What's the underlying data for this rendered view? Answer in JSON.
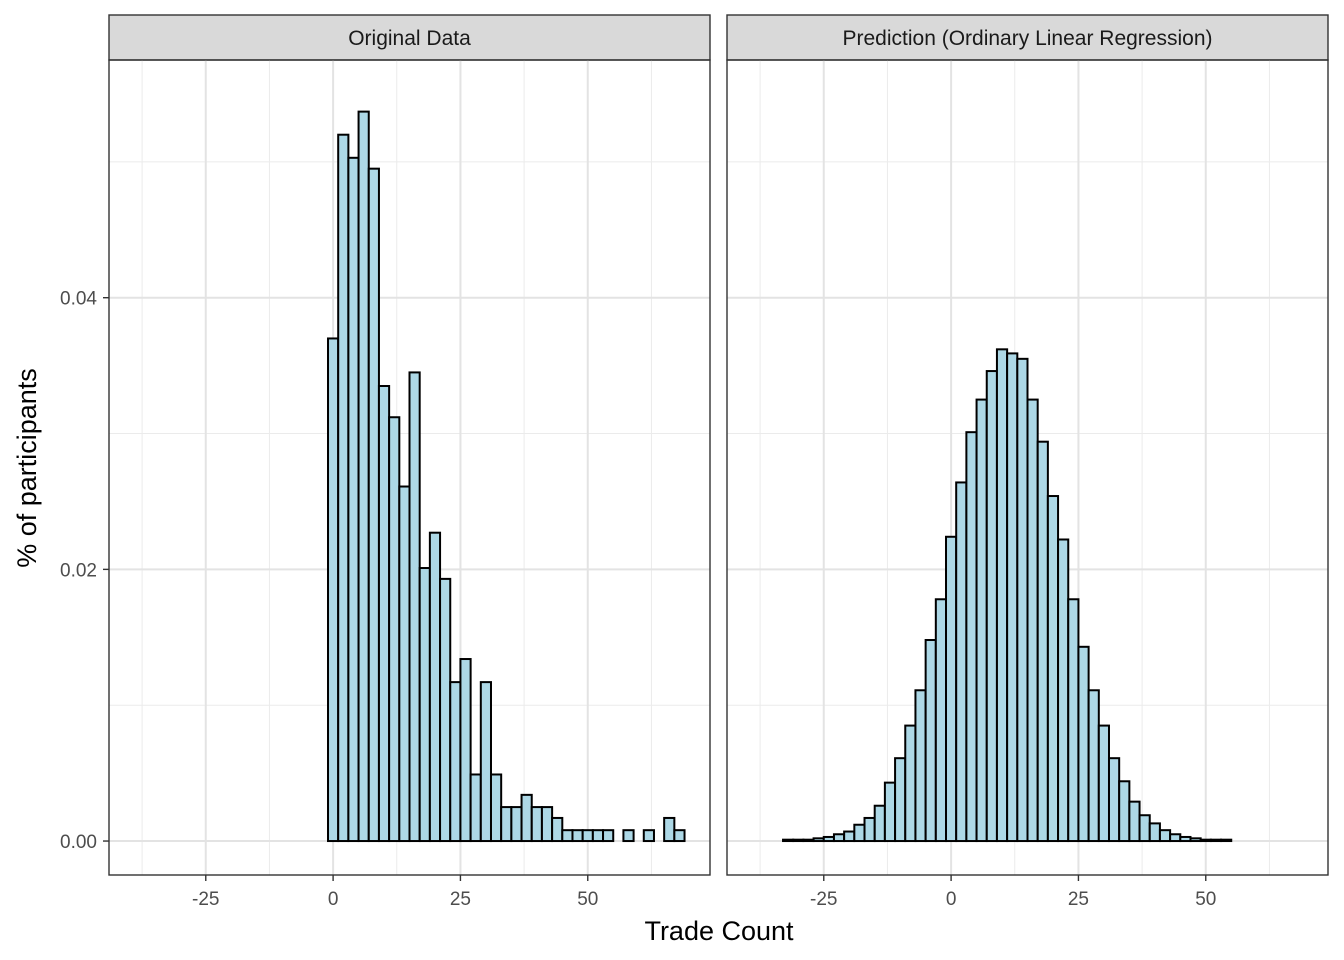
{
  "chart_data": {
    "type": "bar",
    "xlabel": "Trade Count",
    "ylabel": "% of participants",
    "xlim": [
      -44,
      74
    ],
    "ylim": [
      -0.0025,
      0.0575
    ],
    "x_ticks": [
      -25,
      0,
      25,
      50
    ],
    "x_tick_labels": [
      "-25",
      "0",
      "25",
      "50"
    ],
    "y_ticks": [
      0.0,
      0.02,
      0.04
    ],
    "y_tick_labels": [
      "0.00",
      "0.02",
      "0.04"
    ],
    "bin_width": 2,
    "grid": true,
    "bar_fill": "#add8e6",
    "bar_stroke": "#000000",
    "panels": [
      {
        "title": "Original Data",
        "bin_centers": [
          -38,
          -36,
          -34,
          -32,
          -30,
          -28,
          -26,
          -24,
          -22,
          -20,
          -18,
          -16,
          -14,
          -12,
          -10,
          -8,
          -6,
          -4,
          -2,
          0,
          2,
          4,
          6,
          8,
          10,
          12,
          14,
          16,
          18,
          20,
          22,
          24,
          26,
          28,
          30,
          32,
          34,
          36,
          38,
          40,
          42,
          44,
          46,
          48,
          50,
          52,
          54,
          56,
          58,
          60,
          62,
          64,
          66,
          68
        ],
        "values": [
          0,
          0,
          0,
          0,
          0,
          0,
          0,
          0,
          0,
          0,
          0,
          0,
          0,
          0,
          0,
          0,
          0,
          0,
          0,
          0.037,
          0.052,
          0.0503,
          0.0537,
          0.0495,
          0.0335,
          0.0312,
          0.0261,
          0.0345,
          0.0201,
          0.0227,
          0.0193,
          0.0117,
          0.0134,
          0.0049,
          0.0117,
          0.0049,
          0.0025,
          0.0025,
          0.0034,
          0.0025,
          0.0025,
          0.0017,
          0.0008,
          0.0008,
          0.0008,
          0.0008,
          0.0008,
          0,
          0.0008,
          0,
          0.0008,
          0,
          0.0017,
          0.0008
        ]
      },
      {
        "title": "Prediction (Ordinary Linear Regression)",
        "bin_centers": [
          -38,
          -36,
          -34,
          -32,
          -30,
          -28,
          -26,
          -24,
          -22,
          -20,
          -18,
          -16,
          -14,
          -12,
          -10,
          -8,
          -6,
          -4,
          -2,
          0,
          2,
          4,
          6,
          8,
          10,
          12,
          14,
          16,
          18,
          20,
          22,
          24,
          26,
          28,
          30,
          32,
          34,
          36,
          38,
          40,
          42,
          44,
          46,
          48,
          50,
          52,
          54,
          56,
          58,
          60,
          62,
          64,
          66,
          68
        ],
        "values": [
          0,
          0,
          0,
          0.0001,
          0.0001,
          0.0001,
          0.0002,
          0.0003,
          0.0005,
          0.0007,
          0.0012,
          0.0017,
          0.0026,
          0.0043,
          0.0061,
          0.0085,
          0.0111,
          0.0148,
          0.0178,
          0.0224,
          0.0264,
          0.0301,
          0.0325,
          0.0346,
          0.0362,
          0.0359,
          0.0355,
          0.0325,
          0.0294,
          0.0254,
          0.0222,
          0.0178,
          0.0143,
          0.0111,
          0.0085,
          0.0061,
          0.0044,
          0.0029,
          0.0019,
          0.0013,
          0.0008,
          0.0005,
          0.0003,
          0.0002,
          0.0001,
          0.0001,
          0.0001,
          0,
          0,
          0,
          0,
          0,
          0,
          0
        ]
      }
    ]
  }
}
